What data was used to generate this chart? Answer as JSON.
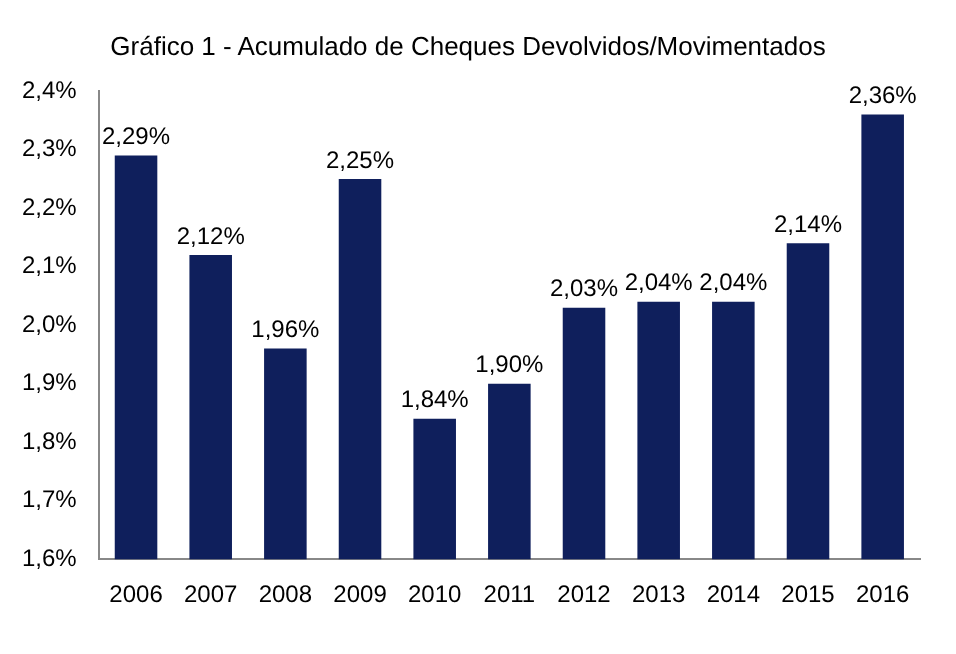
{
  "chart_data": {
    "type": "bar",
    "title": "Gráfico 1 - Acumulado de Cheques Devolvidos/Movimentados",
    "categories": [
      "2006",
      "2007",
      "2008",
      "2009",
      "2010",
      "2011",
      "2012",
      "2013",
      "2014",
      "2015",
      "2016"
    ],
    "values": [
      2.29,
      2.12,
      1.96,
      2.25,
      1.84,
      1.9,
      2.03,
      2.04,
      2.04,
      2.14,
      2.36
    ],
    "value_labels": [
      "2,29%",
      "2,12%",
      "1,96%",
      "2,25%",
      "1,84%",
      "1,90%",
      "2,03%",
      "2,04%",
      "2,04%",
      "2,14%",
      "2,36%"
    ],
    "color": "#0f1f5c",
    "ylim": [
      1.6,
      2.4
    ],
    "yticks": [
      {
        "value": 1.6,
        "label": "1,6%"
      },
      {
        "value": 1.7,
        "label": "1,7%"
      },
      {
        "value": 1.8,
        "label": "1,8%"
      },
      {
        "value": 1.9,
        "label": "1,9%"
      },
      {
        "value": 2.0,
        "label": "2,0%"
      },
      {
        "value": 2.1,
        "label": "2,1%"
      },
      {
        "value": 2.2,
        "label": "2,2%"
      },
      {
        "value": 2.3,
        "label": "2,3%"
      },
      {
        "value": 2.4,
        "label": "2,4%"
      }
    ],
    "grid": false,
    "legend": false
  }
}
